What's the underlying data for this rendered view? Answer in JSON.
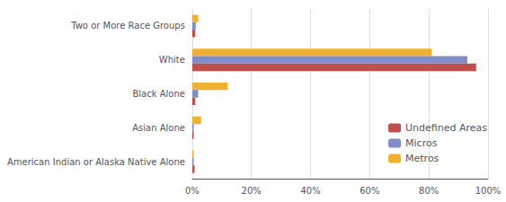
{
  "chart_data": {
    "type": "bar",
    "orientation": "horizontal",
    "categories": [
      "American Indian or Alaska Native Alone",
      "Asian Alone",
      "Black Alone",
      "White",
      "Two or More Race Groups"
    ],
    "series": [
      {
        "name": "Undefined Areas",
        "color": "#c0504d",
        "values": [
          0.8,
          0.5,
          1.0,
          96.0,
          1.0
        ]
      },
      {
        "name": "Micros",
        "color": "#7f8ec9",
        "values": [
          0.5,
          0.5,
          2.0,
          93.0,
          1.2
        ]
      },
      {
        "name": "Metros",
        "color": "#f0b030",
        "values": [
          0.5,
          3.0,
          12.0,
          81.0,
          2.0
        ]
      }
    ],
    "xlim": [
      0,
      100
    ],
    "xticks": [
      {
        "value": 0,
        "label": "0%"
      },
      {
        "value": 20,
        "label": "20%"
      },
      {
        "value": 40,
        "label": "40%"
      },
      {
        "value": 60,
        "label": "60%"
      },
      {
        "value": 80,
        "label": "80%"
      },
      {
        "value": 100,
        "label": "100%"
      }
    ],
    "grid": true,
    "legend": "right"
  }
}
